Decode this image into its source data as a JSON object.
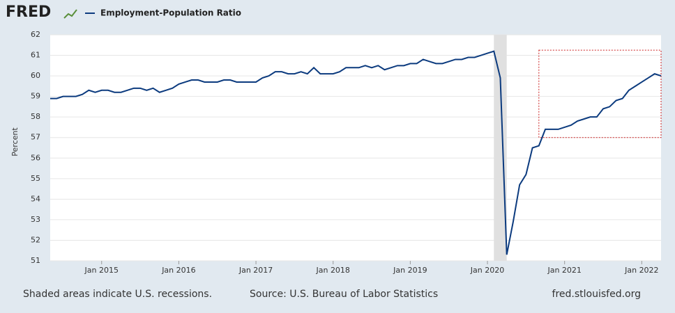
{
  "chart_data": {
    "type": "line",
    "logo": "FRED",
    "y_label": "Percent",
    "footnote": "Shaded areas indicate U.S. recessions.",
    "source": "Source: U.S. Bureau of Labor Statistics",
    "site": "fred.stlouisfed.org",
    "x": [
      "2014-05",
      "2014-06",
      "2014-07",
      "2014-08",
      "2014-09",
      "2014-10",
      "2014-11",
      "2014-12",
      "2015-01",
      "2015-02",
      "2015-03",
      "2015-04",
      "2015-05",
      "2015-06",
      "2015-07",
      "2015-08",
      "2015-09",
      "2015-10",
      "2015-11",
      "2015-12",
      "2016-01",
      "2016-02",
      "2016-03",
      "2016-04",
      "2016-05",
      "2016-06",
      "2016-07",
      "2016-08",
      "2016-09",
      "2016-10",
      "2016-11",
      "2016-12",
      "2017-01",
      "2017-02",
      "2017-03",
      "2017-04",
      "2017-05",
      "2017-06",
      "2017-07",
      "2017-08",
      "2017-09",
      "2017-10",
      "2017-11",
      "2017-12",
      "2018-01",
      "2018-02",
      "2018-03",
      "2018-04",
      "2018-05",
      "2018-06",
      "2018-07",
      "2018-08",
      "2018-09",
      "2018-10",
      "2018-11",
      "2018-12",
      "2019-01",
      "2019-02",
      "2019-03",
      "2019-04",
      "2019-05",
      "2019-06",
      "2019-07",
      "2019-08",
      "2019-09",
      "2019-10",
      "2019-11",
      "2019-12",
      "2020-01",
      "2020-02",
      "2020-03",
      "2020-04",
      "2020-05",
      "2020-06",
      "2020-07",
      "2020-08",
      "2020-09",
      "2020-10",
      "2020-11",
      "2020-12",
      "2021-01",
      "2021-02",
      "2021-03",
      "2021-04",
      "2021-05",
      "2021-06",
      "2021-07",
      "2021-08",
      "2021-09",
      "2021-10",
      "2021-11",
      "2021-12",
      "2022-01",
      "2022-02",
      "2022-03",
      "2022-04"
    ],
    "series": [
      {
        "name": "Employment-Population Ratio",
        "color": "#0b3a7e",
        "values": [
          58.9,
          58.9,
          59.0,
          59.0,
          59.0,
          59.1,
          59.3,
          59.2,
          59.3,
          59.3,
          59.2,
          59.2,
          59.3,
          59.4,
          59.4,
          59.3,
          59.4,
          59.2,
          59.3,
          59.4,
          59.6,
          59.7,
          59.8,
          59.8,
          59.7,
          59.7,
          59.7,
          59.8,
          59.8,
          59.7,
          59.7,
          59.7,
          59.7,
          59.9,
          60.0,
          60.2,
          60.2,
          60.1,
          60.1,
          60.2,
          60.1,
          60.4,
          60.1,
          60.1,
          60.1,
          60.2,
          60.4,
          60.4,
          60.4,
          60.5,
          60.4,
          60.5,
          60.3,
          60.4,
          60.5,
          60.5,
          60.6,
          60.6,
          60.8,
          60.7,
          60.6,
          60.6,
          60.7,
          60.8,
          60.8,
          60.9,
          60.9,
          61.0,
          61.1,
          61.2,
          59.9,
          51.3,
          52.9,
          54.7,
          55.2,
          56.5,
          56.6,
          57.4,
          57.4,
          57.4,
          57.5,
          57.6,
          57.8,
          57.9,
          58.0,
          58.0,
          58.4,
          58.5,
          58.8,
          58.9,
          59.3,
          59.5,
          59.7,
          59.9,
          60.1,
          60.0
        ]
      }
    ],
    "xlim": [
      "2014-05",
      "2022-04"
    ],
    "xticks": [
      {
        "value": "2015-01",
        "label": "Jan 2015"
      },
      {
        "value": "2016-01",
        "label": "Jan 2016"
      },
      {
        "value": "2017-01",
        "label": "Jan 2017"
      },
      {
        "value": "2018-01",
        "label": "Jan 2018"
      },
      {
        "value": "2019-01",
        "label": "Jan 2019"
      },
      {
        "value": "2020-01",
        "label": "Jan 2020"
      },
      {
        "value": "2021-01",
        "label": "Jan 2021"
      },
      {
        "value": "2022-01",
        "label": "Jan 2022"
      }
    ],
    "ylim": [
      51,
      62
    ],
    "yticks": [
      51,
      52,
      53,
      54,
      55,
      56,
      57,
      58,
      59,
      60,
      61,
      62
    ],
    "grid": true,
    "recessions": [
      [
        "2020-02",
        "2020-04"
      ]
    ],
    "highlight_box": {
      "x": [
        "2020-09",
        "2022-04"
      ],
      "y": [
        57,
        61.25
      ],
      "color": "#cc2222"
    }
  }
}
